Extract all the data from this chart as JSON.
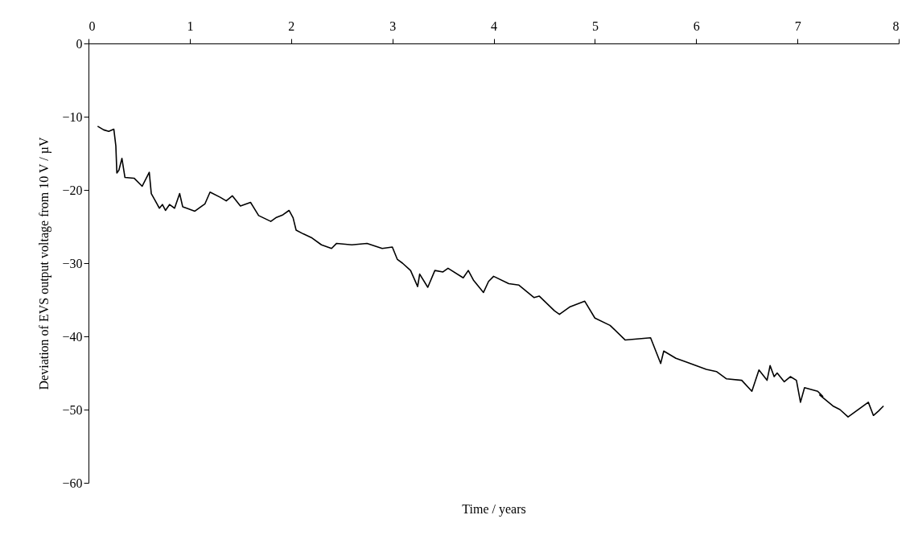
{
  "chart_data": {
    "type": "line",
    "xlabel": "Time / years",
    "ylabel": "Deviation of EVS output voltage from 10 V / µV",
    "xlim": [
      0,
      8
    ],
    "xticks": [
      0,
      1,
      2,
      3,
      4,
      5,
      6,
      7,
      8
    ],
    "ylim": [
      -60,
      0
    ],
    "yticks": [
      -60,
      -50,
      -40,
      -30,
      -20,
      -10,
      0
    ],
    "grid": false,
    "marker": "none",
    "line_style": "solid",
    "series": [
      {
        "color": "#000000",
        "x": [
          0.09,
          0.15,
          0.2,
          0.25,
          0.27,
          0.28,
          0.3,
          0.33,
          0.36,
          0.45,
          0.53,
          0.6,
          0.62,
          0.66,
          0.7,
          0.73,
          0.76,
          0.8,
          0.85,
          0.9,
          0.93,
          0.97,
          1.05,
          1.15,
          1.2,
          1.3,
          1.36,
          1.42,
          1.5,
          1.6,
          1.68,
          1.8,
          1.85,
          1.92,
          1.98,
          2.02,
          2.05,
          2.12,
          2.2,
          2.3,
          2.4,
          2.45,
          2.6,
          2.75,
          2.9,
          3.0,
          3.05,
          3.1,
          3.18,
          3.25,
          3.27,
          3.35,
          3.42,
          3.5,
          3.55,
          3.7,
          3.75,
          3.8,
          3.9,
          3.95,
          4.0,
          4.15,
          4.25,
          4.4,
          4.45,
          4.6,
          4.65,
          4.75,
          4.9,
          5.0,
          5.15,
          5.3,
          5.55,
          5.65,
          5.68,
          5.8,
          5.9,
          6.1,
          6.2,
          6.3,
          6.45,
          6.55,
          6.62,
          6.7,
          6.73,
          6.77,
          6.8,
          6.87,
          6.93,
          6.99,
          7.03,
          7.07,
          7.2,
          7.25,
          7.22,
          7.35,
          7.42,
          7.5,
          7.7,
          7.75,
          7.8,
          7.85
        ],
        "values": [
          -11.3,
          -11.8,
          -12.0,
          -11.7,
          -14.0,
          -17.7,
          -17.3,
          -15.7,
          -18.3,
          -18.4,
          -19.5,
          -17.6,
          -20.5,
          -21.5,
          -22.5,
          -22.0,
          -22.8,
          -22.0,
          -22.5,
          -20.5,
          -22.3,
          -22.5,
          -22.9,
          -21.9,
          -20.3,
          -21.0,
          -21.5,
          -20.8,
          -22.2,
          -21.7,
          -23.5,
          -24.3,
          -23.8,
          -23.4,
          -22.8,
          -23.8,
          -25.5,
          -26.0,
          -26.5,
          -27.5,
          -28.0,
          -27.3,
          -27.5,
          -27.3,
          -28.0,
          -27.8,
          -29.5,
          -30.0,
          -31.0,
          -33.2,
          -31.5,
          -33.3,
          -31.0,
          -31.2,
          -30.7,
          -32.0,
          -31.0,
          -32.3,
          -34.0,
          -32.5,
          -31.8,
          -32.8,
          -33.0,
          -34.7,
          -34.5,
          -36.5,
          -37.0,
          -36.0,
          -35.2,
          -37.5,
          -38.5,
          -40.5,
          -40.2,
          -43.7,
          -42.0,
          -43.0,
          -43.5,
          -44.5,
          -44.8,
          -45.8,
          -46.0,
          -47.5,
          -44.6,
          -46.0,
          -44.0,
          -45.5,
          -45.0,
          -46.2,
          -45.5,
          -46.0,
          -49.0,
          -47.0,
          -47.5,
          -48.2,
          -48.0,
          -49.5,
          -50.0,
          -51.0,
          -49.0,
          -50.8,
          -50.2,
          -49.5
        ]
      }
    ]
  }
}
